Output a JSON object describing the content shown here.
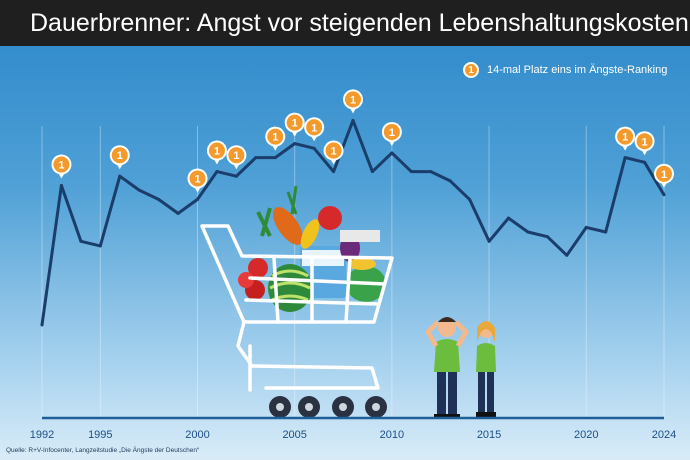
{
  "title": "Dauerbrenner: Angst vor steigenden Lebenshaltungskosten",
  "legend": {
    "marker_text": "1",
    "label": "14-mal Platz eins im Ängste-Ranking"
  },
  "source": "Quelle: R+V-Infocenter, Langzeitstudie „Die Ängste der Deutschen“",
  "colors": {
    "line": "#1b3d6b",
    "pin": "#f49a2c",
    "baseline": "#1e5f9a",
    "title_bar": "#1f1f1f"
  },
  "chart_data": {
    "type": "line",
    "x": [
      1992,
      1993,
      1994,
      1995,
      1996,
      1997,
      1998,
      1999,
      2000,
      2001,
      2002,
      2003,
      2004,
      2005,
      2006,
      2007,
      2008,
      2009,
      2010,
      2011,
      2012,
      2013,
      2014,
      2015,
      2016,
      2017,
      2018,
      2019,
      2020,
      2021,
      2022,
      2023,
      2024
    ],
    "values": [
      20,
      50,
      38,
      37,
      52,
      49,
      47,
      44,
      47,
      53,
      52,
      56,
      56,
      59,
      58,
      53,
      64,
      53,
      57,
      53,
      53,
      51,
      47,
      38,
      43,
      40,
      39,
      35,
      41,
      40,
      56,
      55,
      48
    ],
    "first_place_years": [
      1993,
      1996,
      2000,
      2001,
      2002,
      2004,
      2005,
      2006,
      2007,
      2008,
      2010,
      2022,
      2023,
      2024
    ],
    "marker_label": "1",
    "x_ticks": [
      1992,
      1995,
      2000,
      2005,
      2010,
      2015,
      2020,
      2024
    ],
    "x_tick_labels": [
      "1992",
      "1995",
      "2000",
      "2005",
      "2010",
      "2015",
      "2020",
      "2024"
    ],
    "xlim": [
      1992,
      2024
    ],
    "ylim": [
      0,
      80
    ],
    "grid": "vertical lines at labelled years",
    "legend_position": "top-right"
  }
}
